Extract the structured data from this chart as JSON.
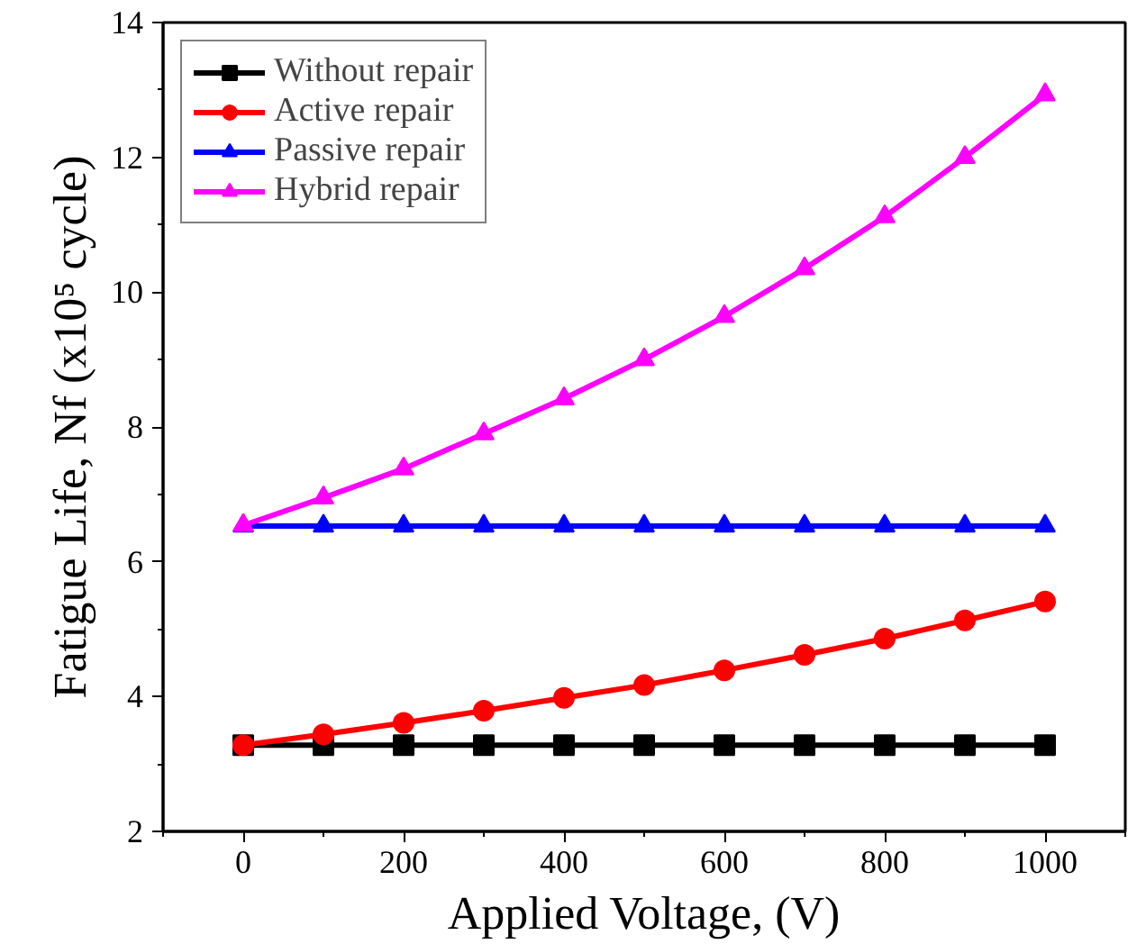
{
  "chart_data": {
    "type": "line",
    "xlabel": "Applied Voltage, (V)",
    "ylabel": "Fatigue Life, Nf (x10⁵ cycle)",
    "x": [
      0,
      100,
      200,
      300,
      400,
      500,
      600,
      700,
      800,
      900,
      1000
    ],
    "series": [
      {
        "name": "Without repair",
        "color": "#000000",
        "marker": "square",
        "values": [
          3.28,
          3.28,
          3.28,
          3.28,
          3.28,
          3.28,
          3.28,
          3.28,
          3.28,
          3.28,
          3.28
        ]
      },
      {
        "name": "Active repair",
        "color": "#ff0000",
        "marker": "circle",
        "values": [
          3.28,
          3.44,
          3.61,
          3.79,
          3.98,
          4.17,
          4.39,
          4.62,
          4.86,
          5.13,
          5.41
        ]
      },
      {
        "name": "Passive repair",
        "color": "#0000ff",
        "marker": "triangle",
        "values": [
          6.53,
          6.53,
          6.53,
          6.53,
          6.53,
          6.53,
          6.53,
          6.53,
          6.53,
          6.53,
          6.53
        ]
      },
      {
        "name": "Hybrid repair",
        "color": "#ff00ff",
        "marker": "triangle",
        "values": [
          6.54,
          6.95,
          7.38,
          7.9,
          8.42,
          9.0,
          9.64,
          10.35,
          11.12,
          12.0,
          12.93
        ]
      }
    ],
    "xlim": [
      -100,
      1100
    ],
    "xticks": [
      0,
      200,
      400,
      600,
      800,
      1000
    ],
    "ylim": [
      2,
      14
    ],
    "yticks": [
      2,
      4,
      6,
      8,
      10,
      12,
      14
    ],
    "grid": false,
    "legend": "top left",
    "line_style": "solid"
  }
}
